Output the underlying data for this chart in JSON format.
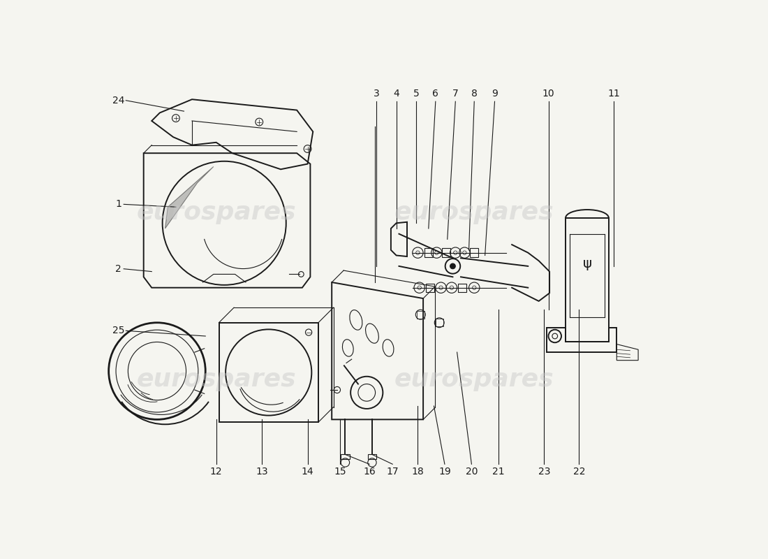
{
  "background_color": "#f5f5f0",
  "watermark_text": "eurospares",
  "watermark_color": "#c8c8c8",
  "watermark_alpha": 0.45,
  "line_color": "#1a1a1a",
  "lw_main": 1.4,
  "lw_thin": 0.8,
  "lw_thick": 2.0,
  "label_fontsize": 10,
  "figsize": [
    11.0,
    8.0
  ],
  "dpi": 100,
  "xlim": [
    0,
    1100
  ],
  "ylim": [
    0,
    800
  ]
}
